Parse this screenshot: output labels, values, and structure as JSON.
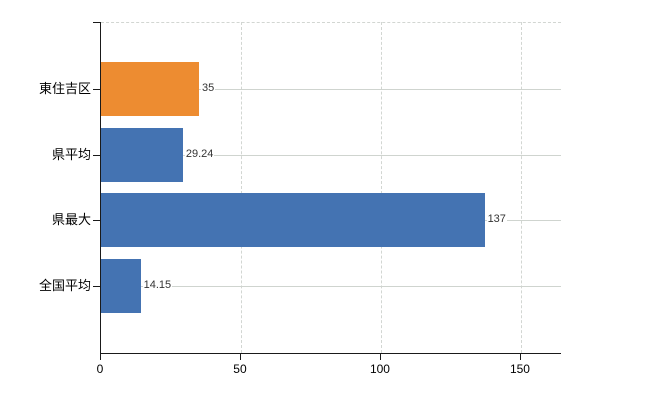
{
  "chart_data": {
    "type": "bar",
    "orientation": "horizontal",
    "title": "",
    "categories": [
      "東住吉区",
      "県平均",
      "県最大",
      "全国平均"
    ],
    "values": [
      35,
      29.24,
      137,
      14.15
    ],
    "value_labels": [
      "35",
      "29.24",
      "137",
      "14.15"
    ],
    "series": [
      {
        "name": "",
        "values": [
          35,
          29.24,
          137,
          14.15
        ]
      }
    ],
    "bar_colors": [
      "#ed8c31",
      "#4473b2",
      "#4473b2",
      "#4473b2"
    ],
    "x_ticks": [
      0,
      50,
      100,
      150
    ],
    "x_tick_labels": [
      "0",
      "50",
      "100",
      "150"
    ],
    "xlim": [
      0,
      164.3
    ],
    "xlabel": "",
    "ylabel": "",
    "legend": "none",
    "grid": {
      "vertical_gridlines": "dashed",
      "row_center_lines": "solid",
      "plot_top_border": "dashed",
      "gridline_color": "#d2d6d2",
      "row_line_color": "#cfd4cf",
      "axis_color": "#1a1a1a"
    },
    "colors": {
      "highlight_bar": "#ed8c31",
      "default_bar": "#4473b2",
      "background": "#ffffff",
      "value_text": "#333333",
      "label_text": "#000000"
    }
  }
}
